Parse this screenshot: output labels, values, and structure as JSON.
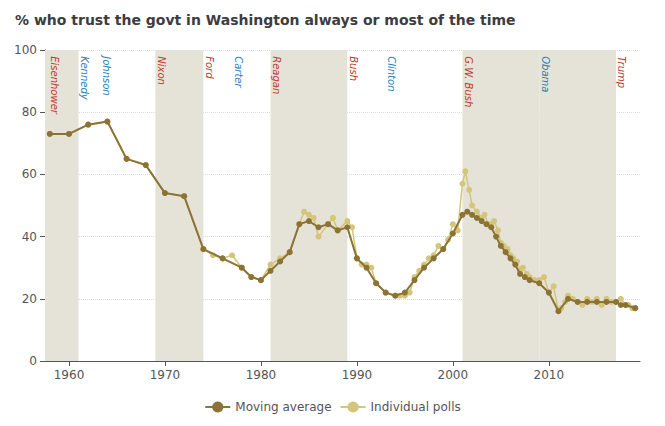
{
  "chart_data": {
    "type": "line",
    "title": "% who trust the govt in Washington always or most of the time",
    "xlim": [
      1957.5,
      2019.5
    ],
    "xticks": [
      1960,
      1970,
      1980,
      1990,
      2000,
      2010
    ],
    "ylim": [
      0,
      100
    ],
    "yticks": [
      0,
      20,
      40,
      60,
      80,
      100
    ],
    "grid": true,
    "legend": "bottom",
    "marker": "circle",
    "series": [
      {
        "name": "Moving average",
        "color": "#8B7336",
        "x": [
          1958,
          1960,
          1962,
          1964,
          1966,
          1968,
          1970,
          1972,
          1974,
          1976,
          1978,
          1979,
          1980,
          1981,
          1982,
          1983,
          1984,
          1985,
          1986,
          1987,
          1988,
          1989,
          1990,
          1991,
          1992,
          1993,
          1994,
          1995,
          1996,
          1997,
          1998,
          1999,
          2000,
          2001,
          2001.5,
          2002,
          2002.5,
          2003,
          2003.5,
          2004,
          2004.5,
          2005,
          2005.5,
          2006,
          2006.5,
          2007,
          2007.5,
          2008,
          2009,
          2010,
          2011,
          2012,
          2013,
          2014,
          2015,
          2016,
          2017,
          2017.5,
          2018,
          2019
        ],
        "values": [
          73,
          73,
          76,
          77,
          65,
          63,
          54,
          53,
          36,
          33,
          30,
          27,
          26,
          29,
          32,
          35,
          44,
          45,
          43,
          44,
          42,
          43,
          33,
          30,
          25,
          22,
          21,
          22,
          26,
          30,
          33,
          36,
          41,
          47,
          48,
          47,
          46,
          45,
          44,
          43,
          40,
          37,
          35,
          33,
          31,
          28,
          27,
          26,
          25,
          22,
          16,
          20,
          19,
          19,
          19,
          19,
          19,
          18,
          18,
          17
        ]
      },
      {
        "name": "Individual polls",
        "color": "#d4c57a",
        "x": [
          1958,
          1960,
          1962,
          1964,
          1966,
          1968,
          1970,
          1972,
          1974,
          1975,
          1976,
          1977,
          1978,
          1979,
          1980,
          1981,
          1982,
          1983,
          1984,
          1984.5,
          1985,
          1985.5,
          1986,
          1987,
          1987.5,
          1988,
          1989,
          1989.5,
          1990,
          1990.5,
          1991,
          1991.5,
          1992,
          1993,
          1994,
          1994.5,
          1995,
          1995.5,
          1996,
          1996.5,
          1997,
          1997.5,
          1998,
          1998.5,
          1999,
          1999.5,
          2000,
          2000.5,
          2001,
          2001.3,
          2001.7,
          2002,
          2002.5,
          2003,
          2003.3,
          2003.7,
          2004,
          2004.3,
          2004.7,
          2005,
          2005.3,
          2005.7,
          2006,
          2006.3,
          2006.7,
          2007,
          2007.3,
          2007.7,
          2008,
          2008.5,
          2009,
          2009.5,
          2010,
          2010.5,
          2011,
          2011.3,
          2011.7,
          2012,
          2012.5,
          2013,
          2013.5,
          2014,
          2014.5,
          2015,
          2015.5,
          2016,
          2016.5,
          2017,
          2017.5,
          2018,
          2018.3,
          2018.7,
          2019
        ],
        "values": [
          73,
          73,
          76,
          77,
          65,
          63,
          54,
          53,
          36,
          34,
          33,
          34,
          30,
          27,
          26,
          31,
          33,
          35,
          44,
          48,
          47,
          46,
          40,
          44,
          46,
          42,
          45,
          43,
          33,
          31,
          31,
          30,
          25,
          22,
          21,
          21,
          21,
          22,
          27,
          29,
          31,
          33,
          34,
          37,
          36,
          39,
          44,
          42,
          57,
          61,
          55,
          50,
          48,
          46,
          47,
          44,
          44,
          45,
          42,
          38,
          37,
          36,
          34,
          33,
          32,
          29,
          30,
          28,
          27,
          26,
          26,
          27,
          22,
          24,
          16,
          17,
          19,
          21,
          20,
          19,
          18,
          20,
          19,
          20,
          18,
          20,
          19,
          19,
          20,
          18,
          18,
          17,
          17
        ]
      }
    ],
    "stripes": [
      {
        "start": 1957.5,
        "end": 1961,
        "color": "#e5e3d8"
      },
      {
        "start": 1969,
        "end": 1974,
        "color": "#e5e3d8"
      },
      {
        "start": 1981,
        "end": 1989,
        "color": "#e5e3d8"
      },
      {
        "start": 2001,
        "end": 2009,
        "color": "#e5e3d8"
      },
      {
        "start": 2009,
        "end": 2017,
        "color": "#e5e3d8"
      }
    ],
    "annotations": [
      {
        "text": "Eisenhower",
        "x": 1958.0,
        "y": 98,
        "color": "#c0392b"
      },
      {
        "text": "Kennedy",
        "x": 1961.1,
        "y": 98,
        "color": "#2980b9"
      },
      {
        "text": "Johnson",
        "x": 1963.4,
        "y": 98,
        "color": "#2980b9"
      },
      {
        "text": "Nixon",
        "x": 1969.1,
        "y": 98,
        "color": "#c0392b"
      },
      {
        "text": "Ford",
        "x": 1974.1,
        "y": 98,
        "color": "#c0392b"
      },
      {
        "text": "Carter",
        "x": 1977.1,
        "y": 98,
        "color": "#2980b9"
      },
      {
        "text": "Reagan",
        "x": 1981.1,
        "y": 98,
        "color": "#c0392b"
      },
      {
        "text": "Bush",
        "x": 1989.1,
        "y": 98,
        "color": "#c0392b"
      },
      {
        "text": "Clinton",
        "x": 1993.1,
        "y": 98,
        "color": "#2980b9"
      },
      {
        "text": "G.W. Bush",
        "x": 2001.1,
        "y": 98,
        "color": "#c0392b"
      },
      {
        "text": "Obama",
        "x": 2009.1,
        "y": 98,
        "color": "#2980b9"
      },
      {
        "text": "Trump",
        "x": 2017.1,
        "y": 98,
        "color": "#c0392b"
      }
    ]
  }
}
